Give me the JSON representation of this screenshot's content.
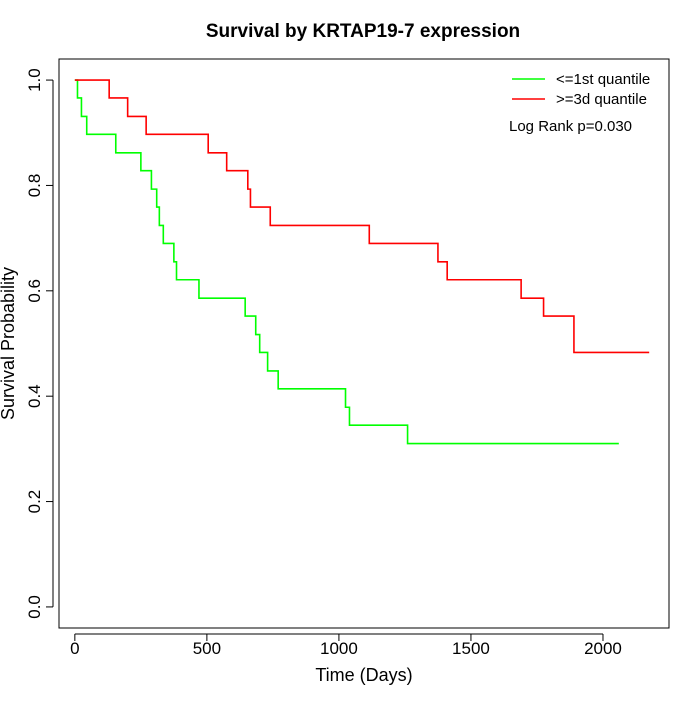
{
  "chart_data": {
    "type": "line",
    "title": "Survival by KRTAP19-7 expression",
    "xlabel": "Time (Days)",
    "ylabel": "Survival Probability",
    "xlim": [
      -60,
      2250
    ],
    "ylim": [
      -0.04,
      1.04
    ],
    "x_ticks": [
      0,
      500,
      1000,
      1500,
      2000
    ],
    "x_tick_labels": [
      "0",
      "500",
      "1000",
      "1500",
      "2000"
    ],
    "y_ticks": [
      0.0,
      0.2,
      0.4,
      0.6,
      0.8,
      1.0
    ],
    "y_tick_labels": [
      "0.0",
      "0.2",
      "0.4",
      "0.6",
      "0.8",
      "1.0"
    ],
    "grid": false,
    "legend_position": "top-right",
    "annotation": "Log Rank p=0.030",
    "series": [
      {
        "name": "<=1st quantile",
        "color": "#00ff00",
        "step_points": [
          [
            0,
            1.0
          ],
          [
            10,
            0.966
          ],
          [
            25,
            0.931
          ],
          [
            45,
            0.897
          ],
          [
            155,
            0.862
          ],
          [
            250,
            0.828
          ],
          [
            290,
            0.793
          ],
          [
            310,
            0.759
          ],
          [
            320,
            0.724
          ],
          [
            335,
            0.69
          ],
          [
            375,
            0.655
          ],
          [
            385,
            0.621
          ],
          [
            470,
            0.586
          ],
          [
            645,
            0.552
          ],
          [
            685,
            0.517
          ],
          [
            700,
            0.483
          ],
          [
            730,
            0.448
          ],
          [
            770,
            0.414
          ],
          [
            1025,
            0.379
          ],
          [
            1040,
            0.345
          ],
          [
            1260,
            0.31
          ],
          [
            2060,
            0.31
          ]
        ]
      },
      {
        "name": ">=3d quantile",
        "color": "#ff0000",
        "step_points": [
          [
            0,
            1.0
          ],
          [
            130,
            0.966
          ],
          [
            200,
            0.931
          ],
          [
            270,
            0.897
          ],
          [
            505,
            0.862
          ],
          [
            575,
            0.828
          ],
          [
            655,
            0.793
          ],
          [
            665,
            0.759
          ],
          [
            740,
            0.724
          ],
          [
            1115,
            0.69
          ],
          [
            1375,
            0.655
          ],
          [
            1410,
            0.621
          ],
          [
            1690,
            0.586
          ],
          [
            1775,
            0.552
          ],
          [
            1890,
            0.483
          ],
          [
            2175,
            0.483
          ]
        ]
      }
    ]
  }
}
